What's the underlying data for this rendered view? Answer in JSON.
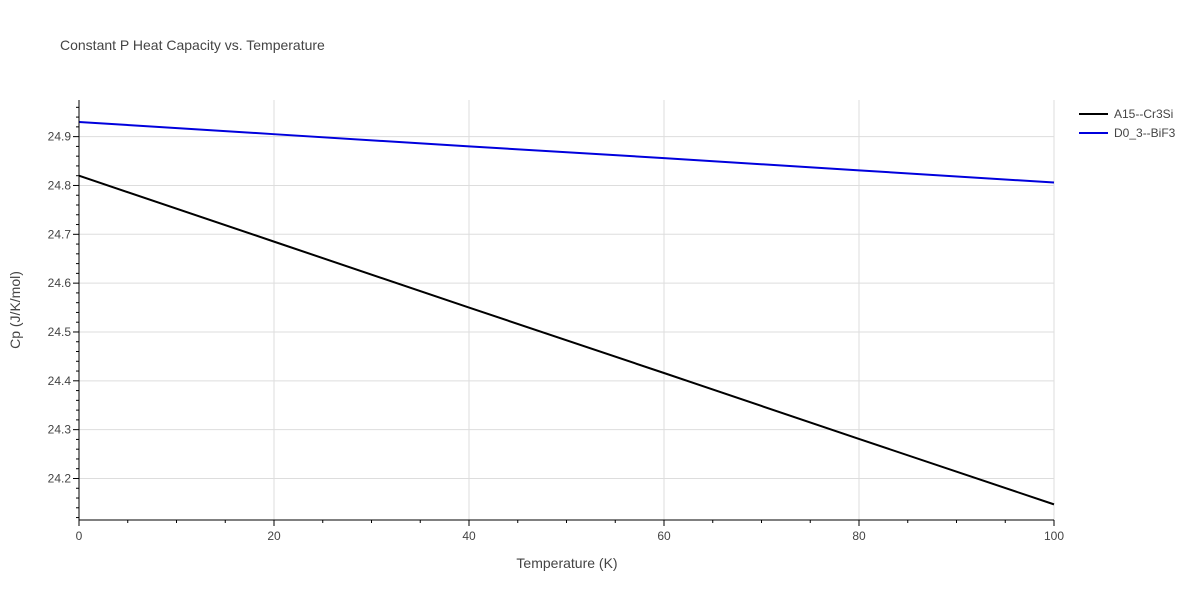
{
  "chart_data": {
    "type": "line",
    "title": "Constant P Heat Capacity vs. Temperature",
    "xlabel": "Temperature (K)",
    "ylabel": "Cp (J/K/mol)",
    "xlim": [
      0,
      100
    ],
    "ylim": [
      24.115,
      24.975
    ],
    "xticks": [
      0,
      20,
      40,
      60,
      80,
      100
    ],
    "yticks": [
      24.2,
      24.3,
      24.4,
      24.5,
      24.6,
      24.7,
      24.8,
      24.9
    ],
    "ytick_labels": [
      "24.2",
      "24.3",
      "24.4",
      "24.5",
      "24.6",
      "24.7",
      "24.8",
      "24.9"
    ],
    "grid": true,
    "legend_position": "top-right",
    "series": [
      {
        "name": "A15--Cr3Si",
        "color": "#000000",
        "x": [
          0,
          20,
          40,
          60,
          80,
          100
        ],
        "y": [
          24.82,
          24.685,
          24.55,
          24.416,
          24.281,
          24.147
        ]
      },
      {
        "name": "D0_3--BiF3",
        "color": "#0000dd",
        "x": [
          0,
          20,
          40,
          60,
          80,
          100
        ],
        "y": [
          24.93,
          24.905,
          24.88,
          24.856,
          24.831,
          24.806
        ]
      }
    ]
  }
}
